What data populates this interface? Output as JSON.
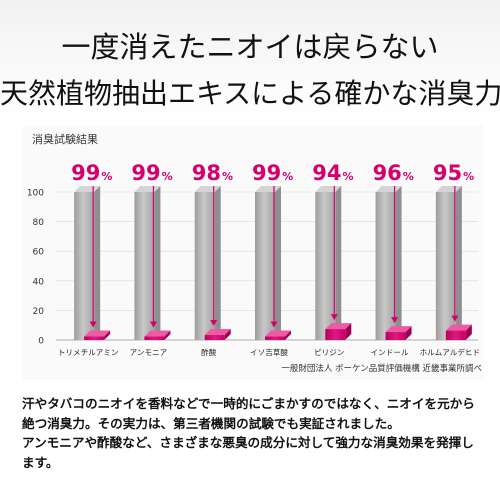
{
  "headline": {
    "line1": "一度消えたニオイは戻らない",
    "line2": "天然植物抽出エキスによる確かな消臭力"
  },
  "chart_data": {
    "type": "bar",
    "title": "消臭試験結果",
    "categories": [
      "トリメチルアミン",
      "アンモニア",
      "酢酸",
      "イソ吉草酸",
      "ピリジン",
      "インドール",
      "ホルムアルデヒド"
    ],
    "initial_values": [
      100,
      100,
      100,
      100,
      100,
      100,
      100
    ],
    "residual_values": [
      1,
      1,
      2,
      1,
      6,
      4,
      5
    ],
    "reduction_labels": [
      "99",
      "99",
      "98",
      "99",
      "94",
      "96",
      "95"
    ],
    "reduction_unit": "%",
    "yticks": [
      "0",
      "10",
      "20",
      "30",
      "40",
      "50",
      "60",
      "70",
      "80",
      "90",
      "100"
    ],
    "ylim": [
      0,
      100
    ],
    "colors": {
      "initial_bar": "#a9a9a9",
      "residual_bar": "#d3006e",
      "arrow": "#d3006e"
    }
  },
  "source_note": "一般財団法人 ボーケン品質評価機構 近畿事業所調べ",
  "description": [
    "汗やタバコのニオイを香料などで一時的にごまかすのではなく、ニオイを元から絶つ消臭力。その実力は、第三者機関の試験でも実証されました。",
    "アンモニアや酢酸など、さまざまな悪臭の成分に対して強力な消臭効果を発揮します。"
  ]
}
